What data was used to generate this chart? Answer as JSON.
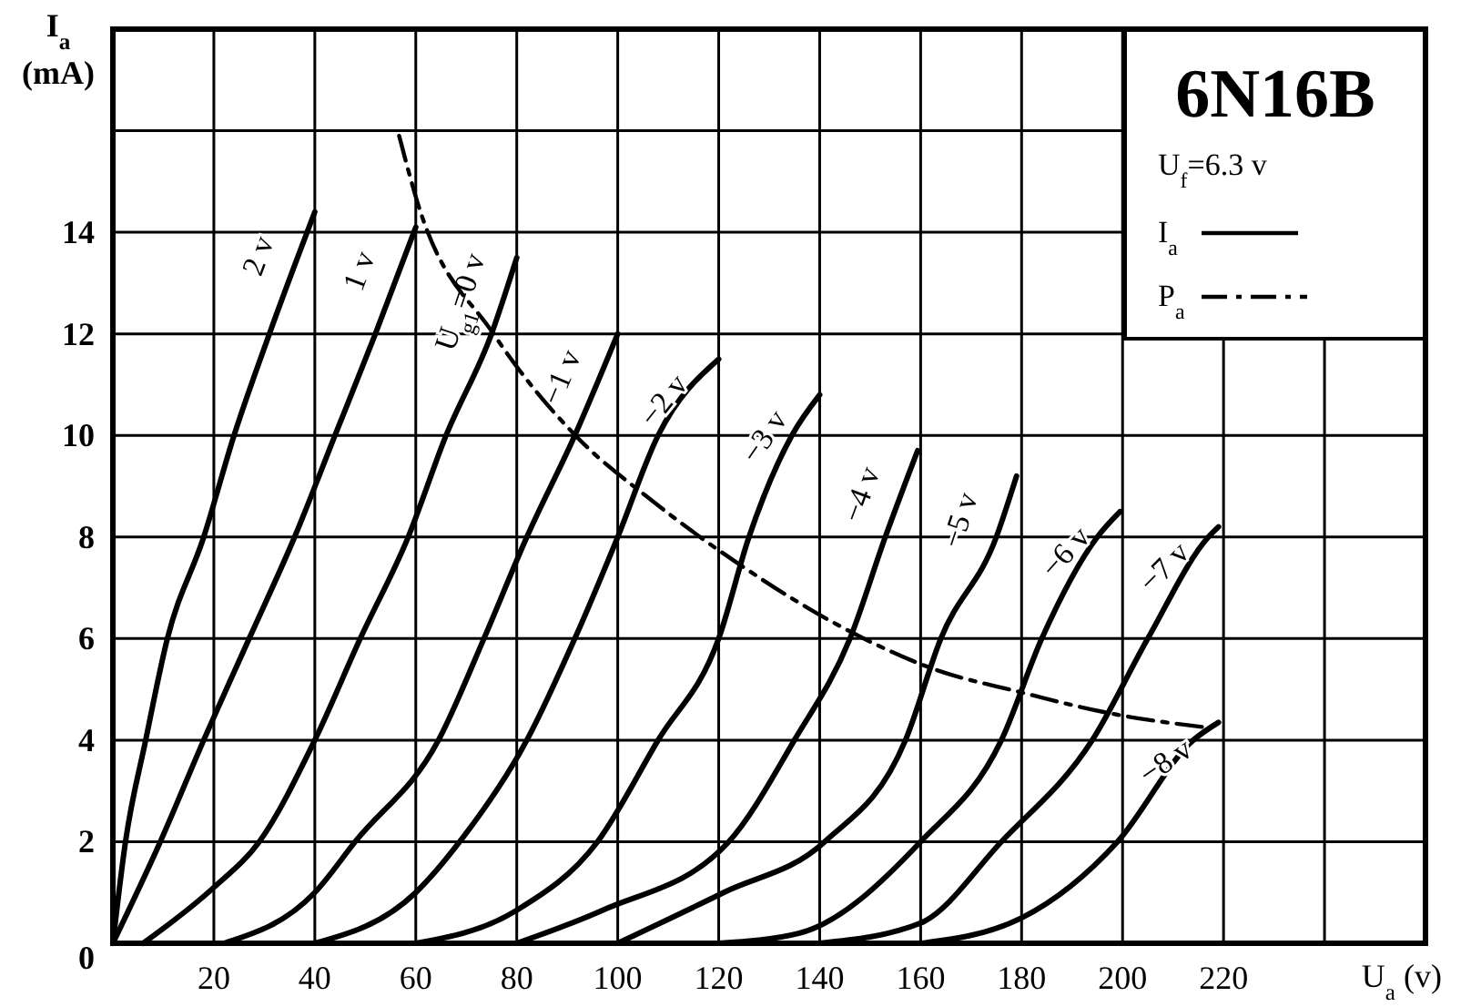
{
  "chart_data": {
    "type": "line",
    "title": "6N16B",
    "xlabel": "U$_{a}$ (v)",
    "ylabel": "I$_{a}$ (mA)",
    "annotations": [
      "U$_{f}$=6.3 v",
      "I$_{a}$"
    ],
    "xlim": [
      0,
      260
    ],
    "ylim": [
      0,
      18
    ],
    "xticks": [
      {
        "value": 0,
        "label": null
      },
      20,
      40,
      60,
      80,
      100,
      120,
      140,
      160,
      180,
      200,
      220,
      {
        "value": 240,
        "label": null
      }
    ],
    "yticks": [
      0,
      2,
      4,
      6,
      8,
      10,
      12,
      14,
      {
        "value": 16,
        "label": null
      }
    ],
    "grid": true,
    "legend": "top right",
    "line_style": "solid",
    "marker": "none",
    "series": [
      {
        "name": "2 v",
        "color": "#000000",
        "x": [
          0,
          2.5,
          6.5,
          10.8,
          18,
          24,
          31,
          40
        ],
        "values": [
          0,
          2,
          4,
          6,
          8,
          10,
          12,
          14.4
        ]
      },
      {
        "name": "1 v",
        "color": "#000000",
        "x": [
          0,
          9.4,
          18,
          27,
          36,
          44,
          52,
          60
        ],
        "values": [
          0,
          2,
          4,
          6,
          8,
          10,
          12,
          14.1
        ]
      },
      {
        "name": "U$_{g1}$=0 v",
        "color": "#000000",
        "x": [
          6,
          20,
          29,
          40,
          49,
          58.5,
          66,
          75,
          80
        ],
        "values": [
          0,
          1.1,
          2,
          4,
          6,
          8,
          10,
          12,
          13.5
        ]
      },
      {
        "name": "−1 v",
        "color": "#000000",
        "x": [
          22,
          40,
          48,
          64.5,
          73.5,
          82,
          91.5,
          100
        ],
        "values": [
          0,
          1,
          2,
          4,
          6,
          8,
          10,
          12
        ]
      },
      {
        "name": "−2 v",
        "color": "#000000",
        "x": [
          40,
          60,
          68.7,
          82,
          91.5,
          100,
          108,
          120
        ],
        "values": [
          0,
          1,
          2,
          4,
          6,
          8,
          10,
          11.5
        ]
      },
      {
        "name": "−3 v",
        "color": "#000000",
        "x": [
          60,
          80,
          96,
          108,
          120,
          126,
          134.5,
          140
        ],
        "values": [
          0,
          0.65,
          2,
          4,
          6,
          8,
          10,
          10.8
        ]
      },
      {
        "name": "−4 v",
        "color": "#000000",
        "x": [
          80,
          97,
          122,
          135,
          146,
          153,
          159.4
        ],
        "values": [
          0,
          0.65,
          2,
          4,
          6,
          8,
          9.7
        ]
      },
      {
        "name": "−5 v",
        "color": "#000000",
        "x": [
          100,
          121,
          141,
          157,
          164,
          175,
          179
        ],
        "values": [
          0,
          1,
          2,
          4,
          6,
          8,
          9.2
        ]
      },
      {
        "name": "−6 v",
        "color": "#000000",
        "x": [
          120,
          136,
          160,
          176,
          184,
          195,
          199.5
        ],
        "values": [
          0,
          0.2,
          2,
          4,
          6,
          8,
          8.5
        ]
      },
      {
        "name": "−7 v",
        "color": "#000000",
        "x": [
          140,
          160,
          176,
          194,
          205,
          217,
          219
        ],
        "values": [
          0,
          0.4,
          2,
          4,
          6,
          8,
          8.2
        ]
      },
      {
        "name": "−8 v",
        "color": "#000000",
        "x": [
          160,
          180,
          199,
          214,
          219
        ],
        "values": [
          0,
          0.5,
          2,
          4,
          4.35
        ]
      },
      {
        "name": "P$_{a}$",
        "color": "#000000",
        "line_style": "dashed",
        "x": [
          56.7,
          60.3,
          75.4,
          91.6,
          107,
          125,
          143,
          162.6,
          179.5,
          199,
          216.5
        ],
        "values": [
          15.9,
          14.6,
          12,
          10,
          8.7,
          7.4,
          6.3,
          5.4,
          4.95,
          4.5,
          4.25
        ]
      }
    ]
  }
}
